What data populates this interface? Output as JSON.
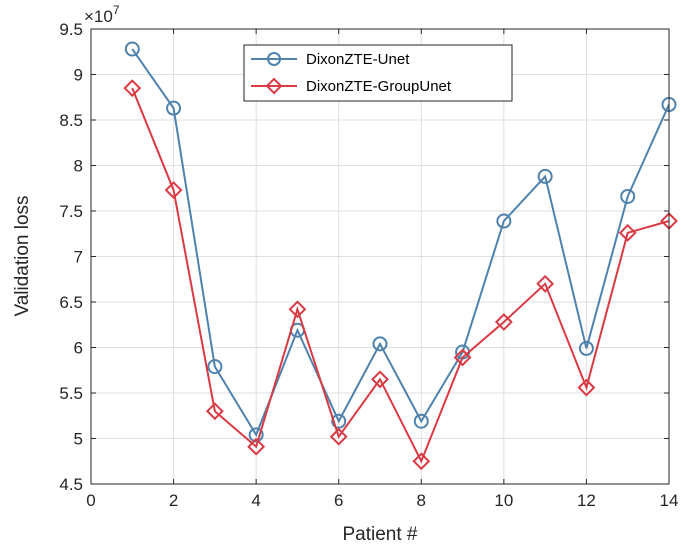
{
  "chart_data": {
    "type": "line",
    "xlabel": "Patient #",
    "ylabel": "Validation loss",
    "y_exponent_label": "×10",
    "y_exponent_power": "7",
    "xlim": [
      0,
      14
    ],
    "ylim": [
      4.5,
      9.5
    ],
    "x_ticks": [
      0,
      2,
      4,
      6,
      8,
      10,
      12,
      14
    ],
    "y_ticks": [
      4.5,
      5,
      5.5,
      6,
      6.5,
      7,
      7.5,
      8,
      8.5,
      9,
      9.5
    ],
    "grid": true,
    "legend_position": "top-center",
    "x": [
      1,
      2,
      3,
      4,
      5,
      6,
      7,
      8,
      9,
      10,
      11,
      12,
      13,
      14
    ],
    "series": [
      {
        "name": "DixonZTE-Unet",
        "color": "#4f82ad",
        "marker": "circle",
        "values": [
          9.28,
          8.63,
          5.79,
          5.04,
          6.19,
          5.19,
          6.04,
          5.19,
          5.95,
          7.39,
          7.88,
          5.99,
          7.66,
          8.67
        ]
      },
      {
        "name": "DixonZTE-GroupUnet",
        "color": "#d93a43",
        "marker": "diamond",
        "values": [
          8.85,
          7.73,
          5.3,
          4.91,
          6.42,
          5.02,
          5.65,
          4.75,
          5.89,
          6.28,
          6.7,
          5.56,
          7.26,
          7.39
        ]
      }
    ]
  }
}
